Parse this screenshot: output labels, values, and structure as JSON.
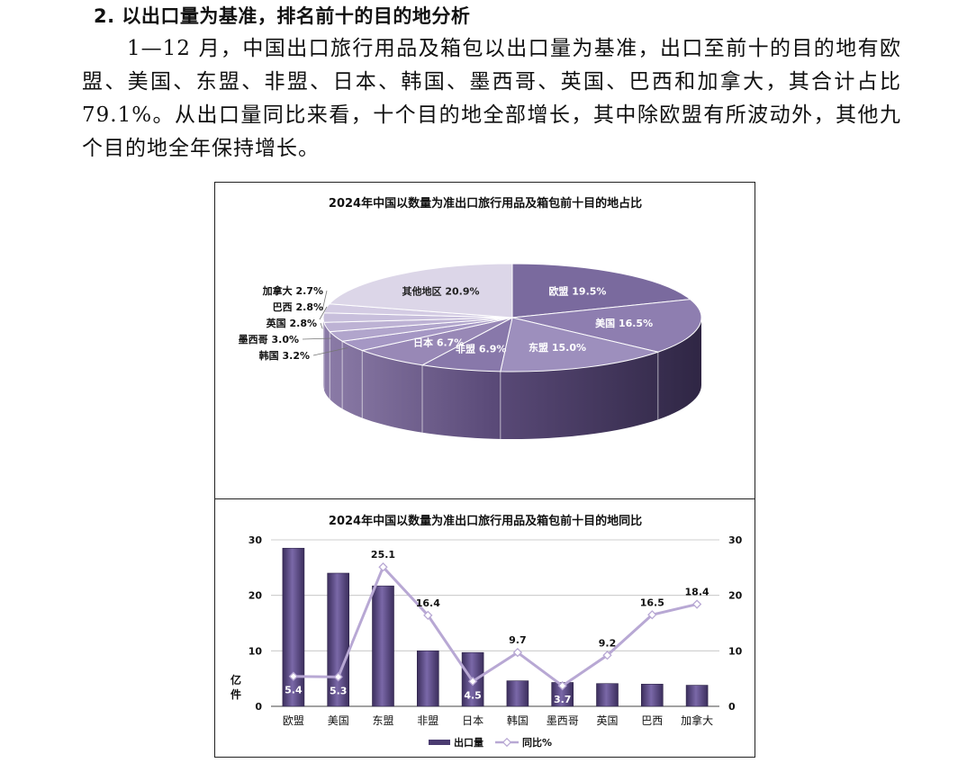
{
  "section": {
    "heading": "2. 以出口量为基准，排名前十的目的地分析",
    "paragraph": "1—12 月，中国出口旅行用品及箱包以出口量为基准，出口至前十的目的地有欧盟、美国、东盟、非盟、日本、韩国、墨西哥、英国、巴西和加拿大，其合计占比 79.1%。从出口量同比来看，十个目的地全部增长，其中除欧盟有所波动外，其他九个目的地全年保持增长。"
  },
  "chart_data": [
    {
      "type": "pie",
      "title": "2024年中国以数量为准出口旅行用品及箱包前十目的地占比",
      "unit": "%",
      "slices": [
        {
          "label": "欧盟",
          "value": 19.5,
          "text": "欧盟 19.5%",
          "color": "#7a6a9e"
        },
        {
          "label": "美国",
          "value": 16.5,
          "text": "美国 16.5%",
          "color": "#8e7eb0"
        },
        {
          "label": "东盟",
          "value": 15.0,
          "text": "东盟 15.0%",
          "color": "#9d8fbd"
        },
        {
          "label": "非盟",
          "value": 6.9,
          "text": "非盟 6.9%",
          "color": "#8878aa"
        },
        {
          "label": "日本",
          "value": 6.7,
          "text": "日本 6.7%",
          "color": "#9888b6"
        },
        {
          "label": "韩国",
          "value": 3.2,
          "text": "韩国 3.2%",
          "color": "#a597c4"
        },
        {
          "label": "墨西哥",
          "value": 3.0,
          "text": "墨西哥 3.0%",
          "color": "#b1a5cc"
        },
        {
          "label": "英国",
          "value": 2.8,
          "text": "英国 2.8%",
          "color": "#bdb2d4"
        },
        {
          "label": "巴西",
          "value": 2.8,
          "text": "巴西 2.8%",
          "color": "#c8bfdc"
        },
        {
          "label": "加拿大",
          "value": 2.7,
          "text": "加拿大 2.7%",
          "color": "#d3cbe3"
        },
        {
          "label": "其他地区",
          "value": 20.9,
          "text": "其他地区 20.9%",
          "color": "#dcd6e8"
        }
      ]
    },
    {
      "type": "bar+line",
      "title": "2024年中国以数量为准出口旅行用品及箱包前十目的地同比",
      "categories": [
        "欧盟",
        "美国",
        "东盟",
        "非盟",
        "日本",
        "韩国",
        "墨西哥",
        "英国",
        "巴西",
        "加拿大"
      ],
      "ylabel": "亿件",
      "ylim": [
        0,
        30
      ],
      "yticks": [
        "0",
        "10",
        "20",
        "30"
      ],
      "y2lim": [
        0,
        30
      ],
      "y2ticks": [
        "0",
        "10",
        "20",
        "30"
      ],
      "series": [
        {
          "name": "出口量",
          "kind": "bar",
          "color": "#5b4a86",
          "values": [
            28.5,
            24.0,
            21.7,
            10.0,
            9.7,
            4.6,
            4.3,
            4.1,
            4.0,
            3.8
          ]
        },
        {
          "name": "同比%",
          "kind": "line",
          "color": "#b8a8d4",
          "values": [
            5.4,
            5.3,
            25.1,
            16.4,
            4.5,
            9.7,
            3.7,
            9.2,
            16.5,
            18.4
          ],
          "labels": [
            "5.4",
            "5.3",
            "25.1",
            "16.4",
            "4.5",
            "9.7",
            "3.7",
            "9.2",
            "16.5",
            "18.4"
          ]
        }
      ],
      "legend": [
        "出口量",
        "同比%"
      ],
      "legend_position": "bottom",
      "grid": true
    }
  ]
}
